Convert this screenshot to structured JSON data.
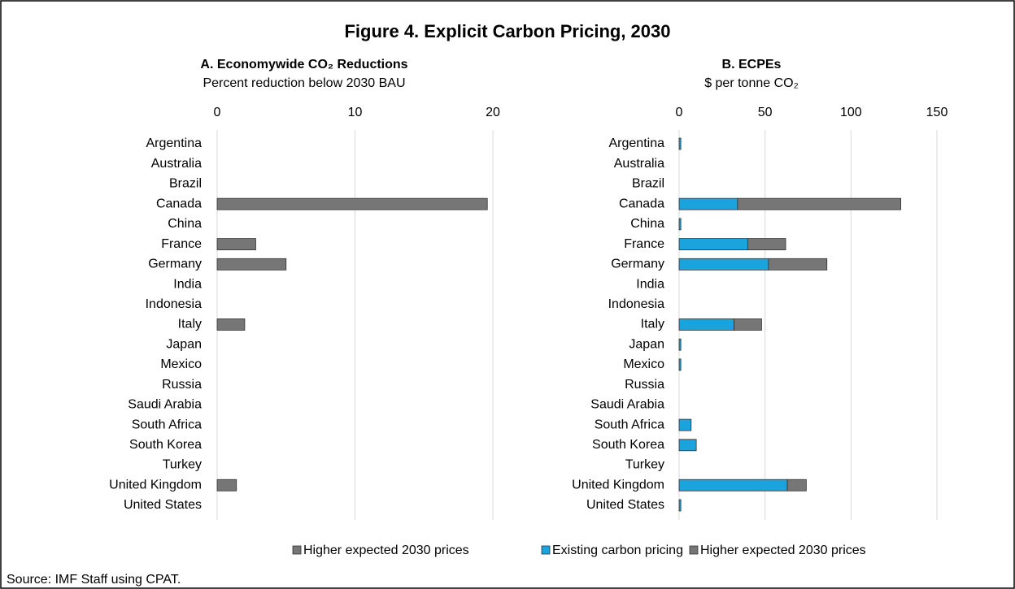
{
  "title": "Figure 4. Explicit Carbon Pricing, 2030",
  "source": "Source: IMF Staff using CPAT.",
  "chart_data": [
    {
      "type": "bar",
      "orientation": "horizontal",
      "title": "A. Economywide CO₂ Reductions",
      "subtitle": "Percent reduction below 2030 BAU",
      "categories": [
        "Argentina",
        "Australia",
        "Brazil",
        "Canada",
        "China",
        "France",
        "Germany",
        "India",
        "Indonesia",
        "Italy",
        "Japan",
        "Mexico",
        "Russia",
        "Saudi Arabia",
        "South Africa",
        "South Korea",
        "Turkey",
        "United Kingdom",
        "United States"
      ],
      "series": [
        {
          "name": "Higher expected 2030 prices",
          "color": "#767676",
          "values": [
            0,
            0,
            0,
            19.6,
            0,
            2.8,
            5.0,
            0,
            0,
            2.0,
            0,
            0,
            0,
            0,
            0,
            0,
            0,
            1.4,
            0
          ]
        }
      ],
      "xlim": [
        0,
        20
      ],
      "xticks": [
        0,
        10,
        20
      ],
      "grid": true,
      "legend": "bottom"
    },
    {
      "type": "stacked_bar",
      "orientation": "horizontal",
      "title": "B. ECPEs",
      "subtitle": "$ per tonne CO₂",
      "categories": [
        "Argentina",
        "Australia",
        "Brazil",
        "Canada",
        "China",
        "France",
        "Germany",
        "India",
        "Indonesia",
        "Italy",
        "Japan",
        "Mexico",
        "Russia",
        "Saudi Arabia",
        "South Africa",
        "South Korea",
        "Turkey",
        "United Kingdom",
        "United States"
      ],
      "series": [
        {
          "name": "Existing carbon pricing",
          "color": "#1aa3dc",
          "values": [
            1,
            0,
            0,
            34,
            1,
            40,
            52,
            0,
            0,
            32,
            1,
            1,
            0,
            0,
            7,
            10,
            0,
            63,
            1
          ]
        },
        {
          "name": "Higher expected 2030 prices",
          "color": "#767676",
          "values": [
            0,
            0,
            0,
            95,
            0,
            22,
            34,
            0,
            0,
            16,
            0,
            0,
            0,
            0,
            0,
            0,
            0,
            11,
            0
          ]
        }
      ],
      "xlim": [
        0,
        150
      ],
      "xticks": [
        0,
        50,
        100,
        150
      ],
      "grid": true,
      "legend": "bottom"
    }
  ]
}
